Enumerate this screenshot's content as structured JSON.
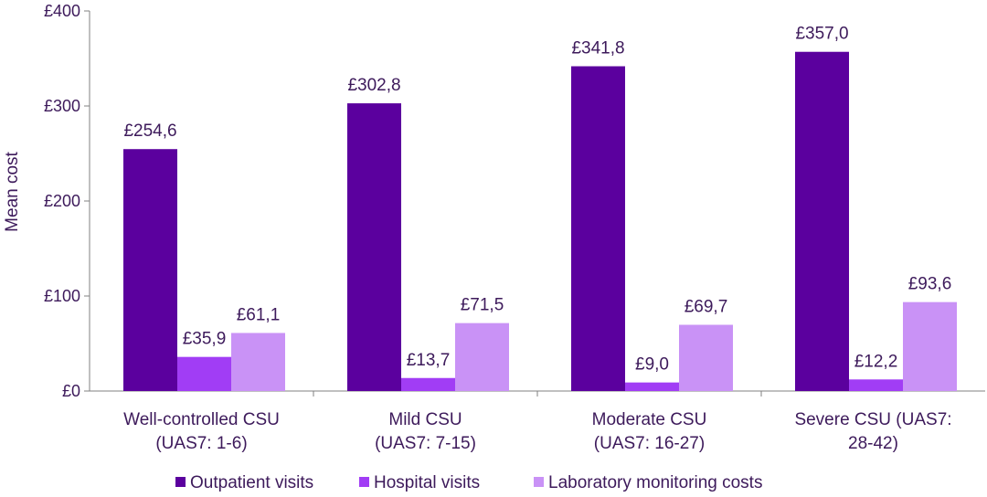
{
  "chart_data": {
    "type": "bar",
    "ylabel": "Mean cost",
    "ylim": [
      0,
      400
    ],
    "yticks": [
      "£0",
      "£100",
      "£200",
      "£300",
      "£400"
    ],
    "categories": [
      [
        "Well-controlled CSU",
        "(UAS7: 1-6)"
      ],
      [
        "Mild CSU",
        "(UAS7: 7-15)"
      ],
      [
        "Moderate CSU",
        "(UAS7: 16-27)"
      ],
      [
        "Severe CSU (UAS7:",
        "28-42)"
      ]
    ],
    "series": [
      {
        "name": "Outpatient visits",
        "color": "#5b009e",
        "values": [
          254.6,
          302.8,
          341.8,
          357.0
        ],
        "labels": [
          "£254,6",
          "£302,8",
          "£341,8",
          "£357,0"
        ]
      },
      {
        "name": "Hospital visits",
        "color": "#a13df5",
        "values": [
          35.9,
          13.7,
          9.0,
          12.2
        ],
        "labels": [
          "£35,9",
          "£13,7",
          "£9,0",
          "£12,2"
        ]
      },
      {
        "name": "Laboratory monitoring costs",
        "color": "#c992f6",
        "values": [
          61.1,
          71.5,
          69.7,
          93.6
        ],
        "labels": [
          "£61,1",
          "£71,5",
          "£69,7",
          "£93,6"
        ]
      }
    ],
    "grid": false,
    "legend_position": "bottom"
  }
}
